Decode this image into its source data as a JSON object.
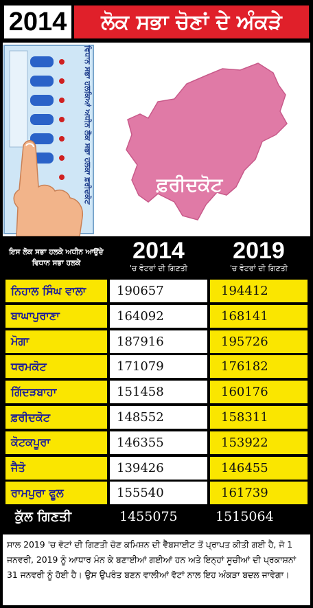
{
  "header": {
    "year": "2014",
    "title": "ਲੋਕ ਸਭਾ ਚੋਣਾਂ ਦੇ ਅੰਕੜੇ"
  },
  "illustration": {
    "map_label": "ਫ਼ਰੀਦਕੋਟ",
    "evm_caption": "ਵਿਧਾਨ ਸਭਾ ਹਲਕਿਆਂ ਅਧੀਨ ਲੋਕ ਸਭਾ ਹਲਕਾ ਫ਼ਰੀਦਕੋਟ"
  },
  "table": {
    "header_const": "ਇਸ ਲੋਕ ਸਭਾ ਹਲਕੇ ਅਧੀਨ ਆਉਂਦੇ ਵਿਧਾਨ ਸਭਾ ਹਲਕੇ",
    "year_a": "2014",
    "year_b": "2019",
    "sub_a": "'ਚ ਵੋਟਰਾਂ ਦੀ ਗਿਣਤੀ",
    "sub_b": "'ਚ ਵੋਟਰਾਂ ਦੀ ਗਿਣਤੀ",
    "rows": [
      {
        "name": "ਨਿਹਾਲ ਸਿੰਘ ਵਾਲਾ",
        "v2014": "190657",
        "v2019": "194412"
      },
      {
        "name": "ਬਾਘਾਪੁਰਾਣਾ",
        "v2014": "164092",
        "v2019": "168141"
      },
      {
        "name": "ਮੋਗਾ",
        "v2014": "187916",
        "v2019": "195726"
      },
      {
        "name": "ਧਰਮਕੋਟ",
        "v2014": "171079",
        "v2019": "176182"
      },
      {
        "name": "ਗਿੱਦੜਬਾਹਾ",
        "v2014": "151458",
        "v2019": "160176"
      },
      {
        "name": "ਫ਼ਰੀਦਕੋਟ",
        "v2014": "148552",
        "v2019": "158311"
      },
      {
        "name": "ਕੋਟਕਪੂਰਾ",
        "v2014": "146355",
        "v2019": "153922"
      },
      {
        "name": "ਜੈਤੋ",
        "v2014": "139426",
        "v2019": "146455"
      },
      {
        "name": "ਰਾਮਪੁਰਾ ਫੂਲ",
        "v2014": "155540",
        "v2019": "161739"
      }
    ],
    "total_label": "ਕੁੱਲ ਗਿਣਤੀ",
    "total_2014": "1455075",
    "total_2019": "1515064"
  },
  "note": "ਸਾਲ 2019 'ਚ ਵੋਟਾਂ ਦੀ ਗਿਣਤੀ ਚੋਣ ਕਮਿਸ਼ਨ ਦੀ ਵੈੱਬਸਾਈਟ ਤੋਂ ਪ੍ਰਾਪਤ ਕੀਤੀ ਗਈ ਹੈ, ਜੋ 1 ਜਨਵਰੀ, 2019 ਨੂੰ ਆਧਾਰ ਮੰਨ ਕੇ ਬਣਾਈਆਂ ਗਈਆਂ ਹਨ ਅਤੇ ਇਨ੍ਹਾਂ ਸੂਚੀਆਂ ਦੀ ਪ੍ਰਕਾਸ਼ਨਾਂ 31 ਜਨਵਰੀ ਨੂੰ ਹੋਈ ਹੈ। ਉਸ ਉਪਰੰਤ ਬਣਨ ਵਾਲੀਆਂ ਵੋਟਾਂ ਨਾਲ ਇਹ ਅੰਕੜਾ ਬਦਲ ਜਾਵੇਗਾ।",
  "colors": {
    "header_red": "#e0202a",
    "yellow": "#fae600",
    "map_pink": "#e07aa6",
    "name_blue": "#1a1a9a"
  }
}
